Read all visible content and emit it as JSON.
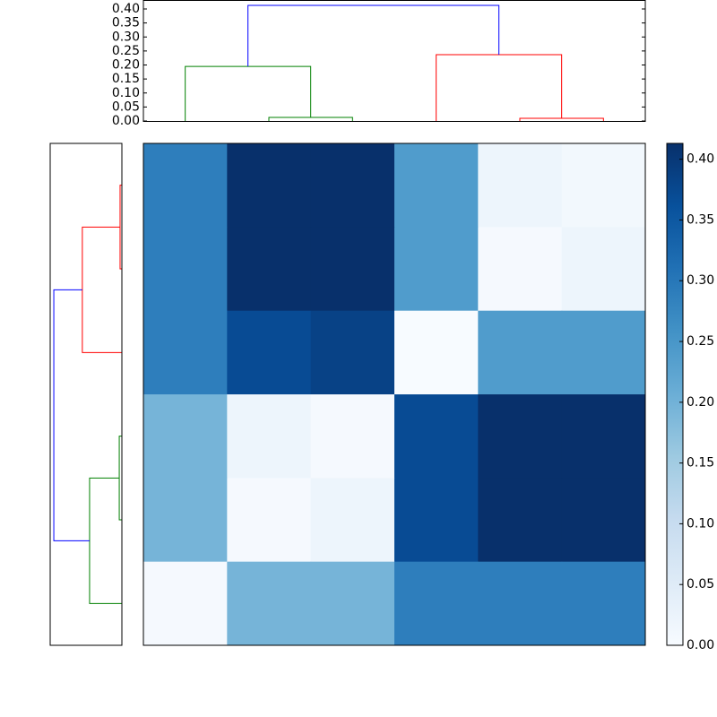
{
  "chart_data": [
    {
      "type": "dendrogram",
      "orientation": "top",
      "ylim": [
        0,
        0.432
      ],
      "yticks": [
        {
          "value": 0,
          "label": "0.00"
        },
        0.05,
        {
          "value": 0.1,
          "label": "0.10"
        },
        0.15,
        {
          "value": 0.2,
          "label": "0.20"
        },
        0.25,
        {
          "value": 0.3,
          "label": "0.30"
        },
        0.35,
        {
          "value": 0.4,
          "label": "0.40"
        }
      ],
      "links": [
        {
          "color": "#008000",
          "x": [
            1,
            1,
            2,
            2
          ],
          "heights": [
            0,
            0.0128,
            0.0128,
            0
          ]
        },
        {
          "color": "#008000",
          "x": [
            0,
            0,
            1.5,
            1.5
          ],
          "heights": [
            0,
            0.195,
            0.195,
            0.0128
          ]
        },
        {
          "color": "#ff0000",
          "x": [
            4,
            4,
            5,
            5
          ],
          "heights": [
            0,
            0.0096,
            0.0096,
            0
          ]
        },
        {
          "color": "#ff0000",
          "x": [
            3,
            3,
            4.5,
            4.5
          ],
          "heights": [
            0,
            0.237,
            0.237,
            0.0096
          ]
        },
        {
          "color": "#0000ff",
          "x": [
            0.75,
            0.75,
            3.75,
            3.75
          ],
          "heights": [
            0.195,
            0.413,
            0.413,
            0.237
          ]
        }
      ]
    },
    {
      "type": "dendrogram",
      "orientation": "left",
      "xlim": [
        0.435,
        0
      ],
      "links": [
        {
          "color": "#ff0000",
          "x": [
            0,
            0,
            1,
            1
          ],
          "heights": [
            0,
            0.011,
            0.011,
            0
          ]
        },
        {
          "color": "#ff0000",
          "x": [
            0.5,
            0.5,
            2,
            2
          ],
          "heights": [
            0.011,
            0.24,
            0.24,
            0
          ]
        },
        {
          "color": "#008000",
          "x": [
            3,
            3,
            4,
            4
          ],
          "heights": [
            0,
            0.016,
            0.016,
            0
          ]
        },
        {
          "color": "#008000",
          "x": [
            3.5,
            3.5,
            5,
            5
          ],
          "heights": [
            0.016,
            0.196,
            0.196,
            0
          ]
        },
        {
          "color": "#0000ff",
          "x": [
            1.25,
            1.25,
            4.25,
            4.25
          ],
          "heights": [
            0.24,
            0.413,
            0.413,
            0.196
          ]
        }
      ]
    },
    {
      "type": "heatmap",
      "values": [
        [
          0.29,
          0.413,
          0.413,
          0.24,
          0.02,
          0.01
        ],
        [
          0.29,
          0.413,
          0.413,
          0.24,
          0.005,
          0.02
        ],
        [
          0.29,
          0.37,
          0.385,
          0.0,
          0.24,
          0.24
        ],
        [
          0.195,
          0.02,
          0.005,
          0.37,
          0.413,
          0.413
        ],
        [
          0.195,
          0.005,
          0.02,
          0.37,
          0.413,
          0.413
        ],
        [
          0.005,
          0.195,
          0.195,
          0.29,
          0.29,
          0.29
        ]
      ],
      "colormap": [
        "#f7fbff",
        "#deebf7",
        "#c6dbef",
        "#9ecae1",
        "#6baed6",
        "#4292c6",
        "#2171b5",
        "#08519c",
        "#08306b"
      ],
      "clim": [
        0,
        0.413
      ],
      "colorbar_ticks": [
        {
          "value": 0,
          "label": "0.00"
        },
        0.05,
        {
          "value": 0.1,
          "label": "0.10"
        },
        0.15,
        {
          "value": 0.2,
          "label": "0.20"
        },
        0.25,
        {
          "value": 0.3,
          "label": "0.30"
        },
        0.35,
        {
          "value": 0.4,
          "label": "0.40"
        }
      ]
    }
  ]
}
